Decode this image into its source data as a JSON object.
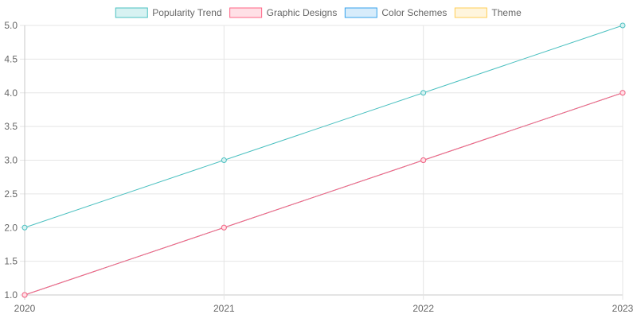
{
  "chart_data": {
    "type": "line",
    "categories": [
      "2020",
      "2021",
      "2022",
      "2023"
    ],
    "series": [
      {
        "name": "Popularity Trend",
        "values": [
          2,
          3,
          4,
          5
        ],
        "stroke": "#4bc0c0",
        "fill": "#d7f2f2"
      },
      {
        "name": "Graphic Designs",
        "values": [
          1,
          2,
          3,
          4
        ],
        "stroke": "#ff6384",
        "fill": "#ffe0e6"
      },
      {
        "name": "Color Schemes",
        "values": [
          1,
          2,
          3,
          4
        ],
        "stroke": "#36a2eb",
        "fill": "#d7ecfb"
      },
      {
        "name": "Theme",
        "values": [
          1,
          2,
          3,
          4
        ],
        "stroke": "#ffce56",
        "fill": "#fff5dd"
      }
    ],
    "yticks": [
      "1.0",
      "1.5",
      "2.0",
      "2.5",
      "3.0",
      "3.5",
      "4.0",
      "4.5",
      "5.0"
    ],
    "ylim": [
      1,
      5
    ],
    "title": "",
    "xlabel": "",
    "ylabel": "",
    "legend": "top",
    "grid": true
  }
}
